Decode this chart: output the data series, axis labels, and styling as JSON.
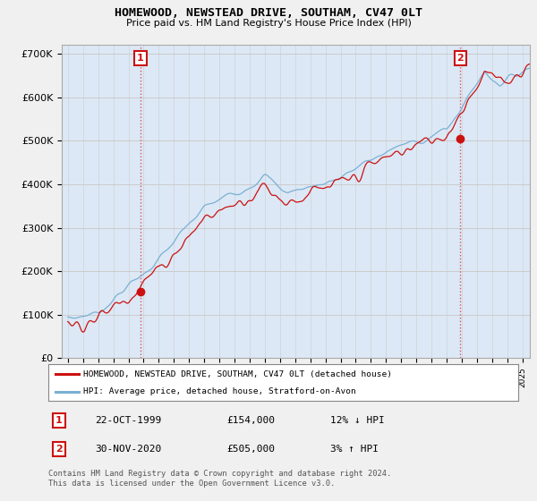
{
  "title": "HOMEWOOD, NEWSTEAD DRIVE, SOUTHAM, CV47 0LT",
  "subtitle": "Price paid vs. HM Land Registry's House Price Index (HPI)",
  "ylim": [
    0,
    720000
  ],
  "yticks": [
    0,
    100000,
    200000,
    300000,
    400000,
    500000,
    600000,
    700000
  ],
  "ytick_labels": [
    "£0",
    "£100K",
    "£200K",
    "£300K",
    "£400K",
    "£500K",
    "£600K",
    "£700K"
  ],
  "legend_line1": "HOMEWOOD, NEWSTEAD DRIVE, SOUTHAM, CV47 0LT (detached house)",
  "legend_line2": "HPI: Average price, detached house, Stratford-on-Avon",
  "annotation1_label": "1",
  "annotation1_date": "22-OCT-1999",
  "annotation1_price": "£154,000",
  "annotation1_hpi": "12% ↓ HPI",
  "annotation2_label": "2",
  "annotation2_date": "30-NOV-2020",
  "annotation2_price": "£505,000",
  "annotation2_hpi": "3% ↑ HPI",
  "footer": "Contains HM Land Registry data © Crown copyright and database right 2024.\nThis data is licensed under the Open Government Licence v3.0.",
  "point1_year": 1999.8,
  "point1_value": 154000,
  "point2_year": 2020.9,
  "point2_value": 505000,
  "hpi_color": "#7ab0d4",
  "price_color": "#cc1111",
  "vline_color": "#dd4444",
  "grid_color": "#cccccc",
  "background_color": "#f0f0f0",
  "plot_bg_color": "#dce8f5"
}
